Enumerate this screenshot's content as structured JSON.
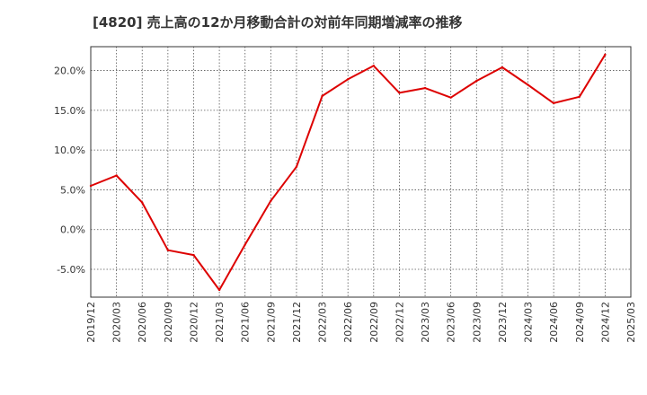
{
  "chart_data": {
    "type": "line",
    "title": "[4820]  売上高の12か月移動合計の対前年同期増減率の推移",
    "xlabel": "",
    "ylabel": "",
    "ylim": [
      -8.5,
      23.0
    ],
    "yticks": [
      -5.0,
      0.0,
      5.0,
      10.0,
      15.0,
      20.0
    ],
    "ytick_labels": [
      "-5.0%",
      "0.0%",
      "5.0%",
      "10.0%",
      "15.0%",
      "20.0%"
    ],
    "categories": [
      "2019/12",
      "2020/03",
      "2020/06",
      "2020/09",
      "2020/12",
      "2021/03",
      "2021/06",
      "2021/09",
      "2021/12",
      "2022/03",
      "2022/06",
      "2022/09",
      "2022/12",
      "2023/03",
      "2023/06",
      "2023/09",
      "2023/12",
      "2024/03",
      "2024/06",
      "2024/09",
      "2024/12",
      "2025/03"
    ],
    "grid": true,
    "series": [
      {
        "name": "対前年同期増減率",
        "color": "#dd0000",
        "values": [
          5.5,
          6.8,
          3.4,
          -2.6,
          -3.2,
          -7.6,
          -1.9,
          3.6,
          7.9,
          16.8,
          18.9,
          20.6,
          17.2,
          17.8,
          16.6,
          18.7,
          20.4,
          18.2,
          15.9,
          16.7,
          22.0,
          null
        ]
      }
    ]
  }
}
